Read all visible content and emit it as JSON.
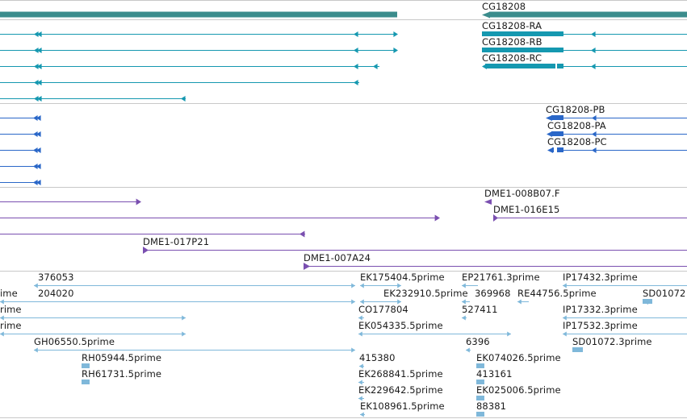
{
  "colors": {
    "gene": "#3b8c8c",
    "mrna": "#1598b0",
    "protein": "#2a67c8",
    "clone": "#7a4fb0",
    "est": "#7fb8da",
    "separator": "#c8c8c8"
  },
  "tracks": {
    "gene": {
      "label": "CG18208"
    },
    "transcripts": [
      "CG18208-RA",
      "CG18208-RB",
      "CG18208-RC"
    ],
    "proteins": [
      "CG18208-PB",
      "CG18208-PA",
      "CG18208-PC"
    ],
    "clones": [
      "DME1-008B07.F",
      "DME1-016E15",
      "DME1-017P21",
      "DME1-007A24"
    ],
    "ests": [
      "376053",
      "EK175404.5prime",
      "EP21761.3prime",
      "IP17432.3prime",
      "ime",
      "204020",
      "EK232910.5prime",
      "369968",
      "RE44756.5prime",
      "SD01072",
      "rime",
      "CO177804",
      "527411",
      "IP17332.3prime",
      "rime",
      "EK054335.5prime",
      "IP17532.3prime",
      "GH06550.5prime",
      "6396",
      "SD01072.3prime",
      "RH05944.5prime",
      "415380",
      "EK074026.5prime",
      "RH61731.5prime",
      "EK268841.5prime",
      "413161",
      "EK229642.5prime",
      "EK025006.5prime",
      "EK108961.5prime",
      "88381"
    ]
  }
}
